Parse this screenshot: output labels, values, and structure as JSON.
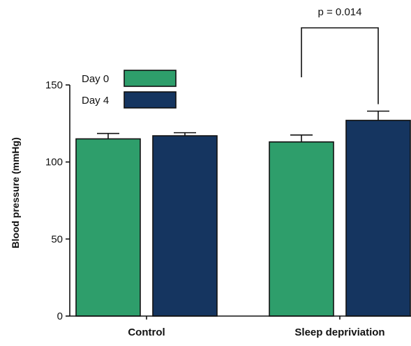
{
  "chart_data": {
    "type": "bar",
    "title": "",
    "xlabel": "",
    "ylabel": "Blood pressure (mmHg)",
    "ylim": [
      0,
      150
    ],
    "yticks": [
      0,
      50,
      100,
      150
    ],
    "categories": [
      "Control",
      "Sleep depriviation"
    ],
    "series": [
      {
        "name": "Day 0",
        "color": "#2e9e6b",
        "values": [
          115,
          113
        ],
        "errors": [
          3.5,
          4.5
        ]
      },
      {
        "name": "Day 4",
        "color": "#153560",
        "values": [
          117,
          127
        ],
        "errors": [
          2,
          6
        ]
      }
    ],
    "legend_position": "top-left",
    "grid": false,
    "annotation": {
      "text": "p = 0.014",
      "between": "Sleep depriviation"
    }
  }
}
